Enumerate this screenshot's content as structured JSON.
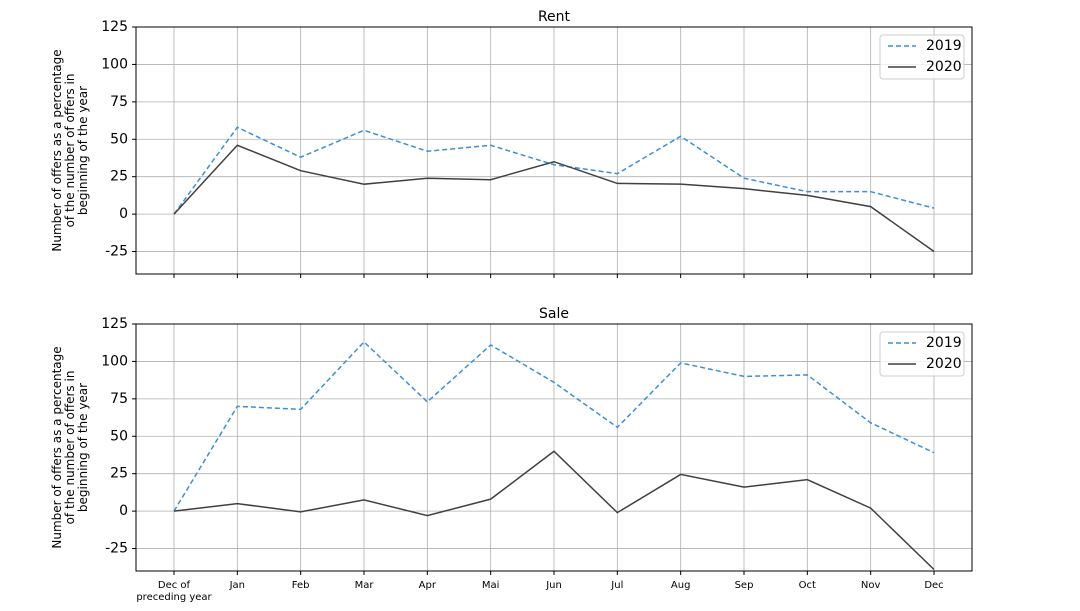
{
  "chart_data": [
    {
      "type": "line",
      "title": "Rent",
      "ylabel": "Number of offers as a percentage\nof the number of offers in\nbeginning of the year",
      "series": [
        {
          "name": "2019",
          "color": "#3a8fd9",
          "linestyle": "dashed",
          "values": [
            0,
            58,
            38,
            56,
            42,
            46,
            33,
            27,
            52,
            24,
            15,
            15,
            4
          ]
        },
        {
          "name": "2020",
          "color": "#404040",
          "linestyle": "solid",
          "values": [
            0,
            46,
            29,
            20,
            24,
            23,
            35,
            20.5,
            20,
            17,
            12.5,
            5,
            -25
          ]
        }
      ],
      "ylim": [
        -40,
        125
      ],
      "yticks": [
        -25,
        0,
        25,
        50,
        75,
        100,
        125
      ],
      "grid": true,
      "legend": "upper-right"
    },
    {
      "type": "line",
      "title": "Sale",
      "ylabel": "Number of offers as a percentage\nof the number of offers in\nbeginning of the year",
      "categories": [
        "Dec of\npreceding year",
        "Jan",
        "Feb",
        "Mar",
        "Apr",
        "Mai",
        "Jun",
        "Jul",
        "Aug",
        "Sep",
        "Oct",
        "Nov",
        "Dec"
      ],
      "series": [
        {
          "name": "2019",
          "color": "#3a8fd9",
          "linestyle": "dashed",
          "values": [
            0,
            70,
            68,
            113,
            73,
            111,
            86,
            56,
            99,
            90,
            91,
            59,
            39
          ]
        },
        {
          "name": "2020",
          "color": "#404040",
          "linestyle": "solid",
          "values": [
            0,
            5,
            -0.5,
            7.5,
            -3,
            8,
            40,
            -1,
            24.5,
            16,
            21,
            2,
            -39
          ]
        }
      ],
      "ylim": [
        -40,
        125
      ],
      "yticks": [
        -25,
        0,
        25,
        50,
        75,
        100,
        125
      ],
      "grid": true,
      "legend": "upper-right"
    }
  ]
}
